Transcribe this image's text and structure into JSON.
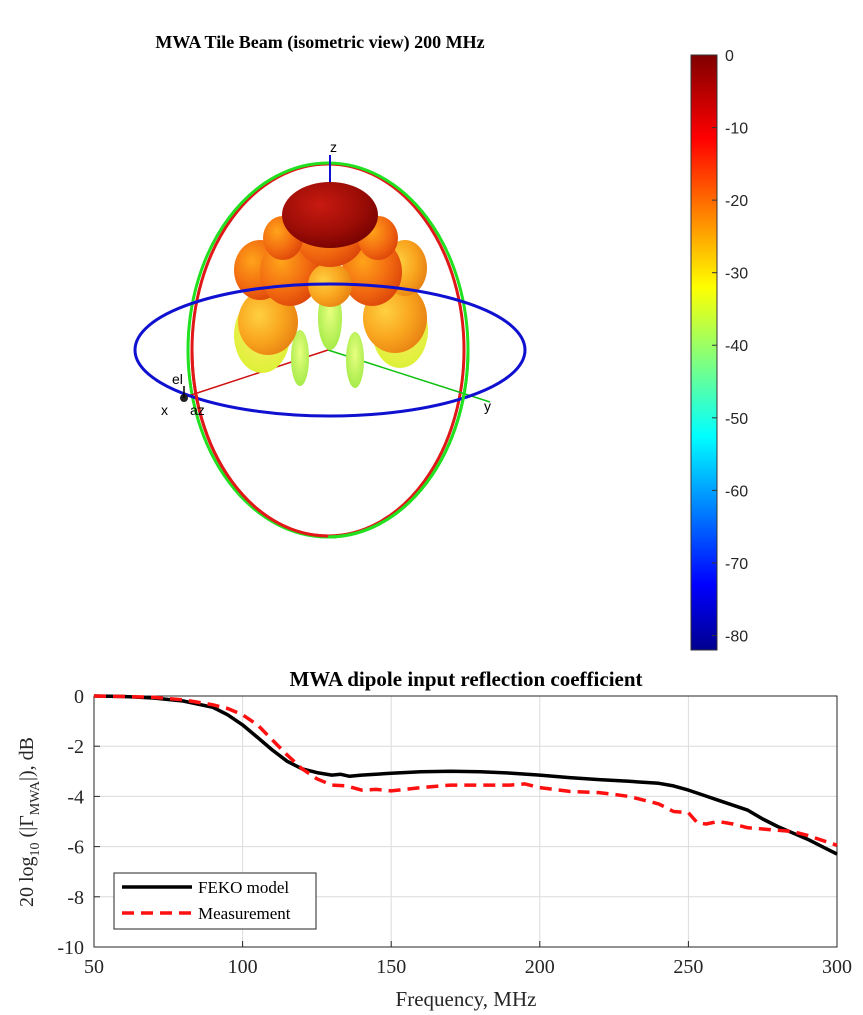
{
  "chart_data": [
    {
      "type": "other",
      "kind": "3d-beam-pattern",
      "title": "MWA Tile Beam (isometric view) 200 MHz",
      "axis_labels": {
        "z": "z",
        "x": "x",
        "y": "y",
        "el": "el",
        "az": "az"
      },
      "colorbar": {
        "range": [
          -82,
          0
        ],
        "ticks": [
          0,
          -10,
          -20,
          -30,
          -40,
          -50,
          -60,
          -70,
          -80
        ],
        "tick_labels": [
          "0",
          "-10",
          "-20",
          "-30",
          "-40",
          "-50",
          "-60",
          "-70",
          "-80"
        ],
        "colormap": "jet"
      },
      "ring_colors": {
        "azimuth": "#1010d0",
        "x_elevation": "#e01818",
        "y_elevation": "#20e020"
      }
    },
    {
      "type": "line",
      "title": "MWA dipole input reflection coefficient",
      "xlabel": "Frequency, MHz",
      "ylabel_prefix": "20 log",
      "ylabel_sub1": "10",
      "ylabel_mid": " (|Γ",
      "ylabel_sub2": "MWA",
      "ylabel_suffix": "|), dB",
      "xlim": [
        50,
        300
      ],
      "ylim": [
        -10,
        0
      ],
      "xticks": [
        50,
        100,
        150,
        200,
        250,
        300
      ],
      "yticks": [
        0,
        -2,
        -4,
        -6,
        -8,
        -10
      ],
      "grid": true,
      "legend_position": "bottom-left",
      "series": [
        {
          "name": "FEKO model",
          "color": "#000000",
          "style": "solid",
          "points": [
            [
              50,
              0
            ],
            [
              60,
              -0.02
            ],
            [
              70,
              -0.08
            ],
            [
              80,
              -0.2
            ],
            [
              90,
              -0.45
            ],
            [
              95,
              -0.75
            ],
            [
              100,
              -1.15
            ],
            [
              105,
              -1.65
            ],
            [
              110,
              -2.15
            ],
            [
              115,
              -2.6
            ],
            [
              120,
              -2.9
            ],
            [
              125,
              -3.05
            ],
            [
              130,
              -3.15
            ],
            [
              133,
              -3.12
            ],
            [
              136,
              -3.2
            ],
            [
              140,
              -3.15
            ],
            [
              150,
              -3.08
            ],
            [
              160,
              -3.02
            ],
            [
              170,
              -3.0
            ],
            [
              180,
              -3.02
            ],
            [
              190,
              -3.07
            ],
            [
              200,
              -3.15
            ],
            [
              210,
              -3.25
            ],
            [
              220,
              -3.33
            ],
            [
              230,
              -3.4
            ],
            [
              240,
              -3.48
            ],
            [
              245,
              -3.58
            ],
            [
              250,
              -3.75
            ],
            [
              255,
              -3.95
            ],
            [
              260,
              -4.15
            ],
            [
              265,
              -4.35
            ],
            [
              270,
              -4.55
            ],
            [
              275,
              -4.9
            ],
            [
              280,
              -5.2
            ],
            [
              285,
              -5.45
            ],
            [
              290,
              -5.7
            ],
            [
              295,
              -6.0
            ],
            [
              300,
              -6.3
            ]
          ]
        },
        {
          "name": "Measurement",
          "color": "#ff1010",
          "style": "dashed",
          "points": [
            [
              50,
              0
            ],
            [
              60,
              -0.02
            ],
            [
              70,
              -0.05
            ],
            [
              80,
              -0.15
            ],
            [
              90,
              -0.35
            ],
            [
              95,
              -0.5
            ],
            [
              100,
              -0.75
            ],
            [
              105,
              -1.15
            ],
            [
              110,
              -1.75
            ],
            [
              115,
              -2.35
            ],
            [
              120,
              -2.9
            ],
            [
              125,
              -3.3
            ],
            [
              130,
              -3.55
            ],
            [
              135,
              -3.58
            ],
            [
              140,
              -3.75
            ],
            [
              145,
              -3.72
            ],
            [
              150,
              -3.78
            ],
            [
              160,
              -3.65
            ],
            [
              170,
              -3.55
            ],
            [
              180,
              -3.55
            ],
            [
              190,
              -3.55
            ],
            [
              195,
              -3.5
            ],
            [
              200,
              -3.65
            ],
            [
              210,
              -3.8
            ],
            [
              220,
              -3.85
            ],
            [
              230,
              -4.0
            ],
            [
              240,
              -4.3
            ],
            [
              245,
              -4.6
            ],
            [
              250,
              -4.65
            ],
            [
              253,
              -5.05
            ],
            [
              256,
              -5.1
            ],
            [
              260,
              -5.0
            ],
            [
              265,
              -5.1
            ],
            [
              270,
              -5.25
            ],
            [
              275,
              -5.3
            ],
            [
              280,
              -5.35
            ],
            [
              285,
              -5.4
            ],
            [
              290,
              -5.55
            ],
            [
              295,
              -5.75
            ],
            [
              300,
              -5.95
            ]
          ]
        }
      ]
    }
  ]
}
